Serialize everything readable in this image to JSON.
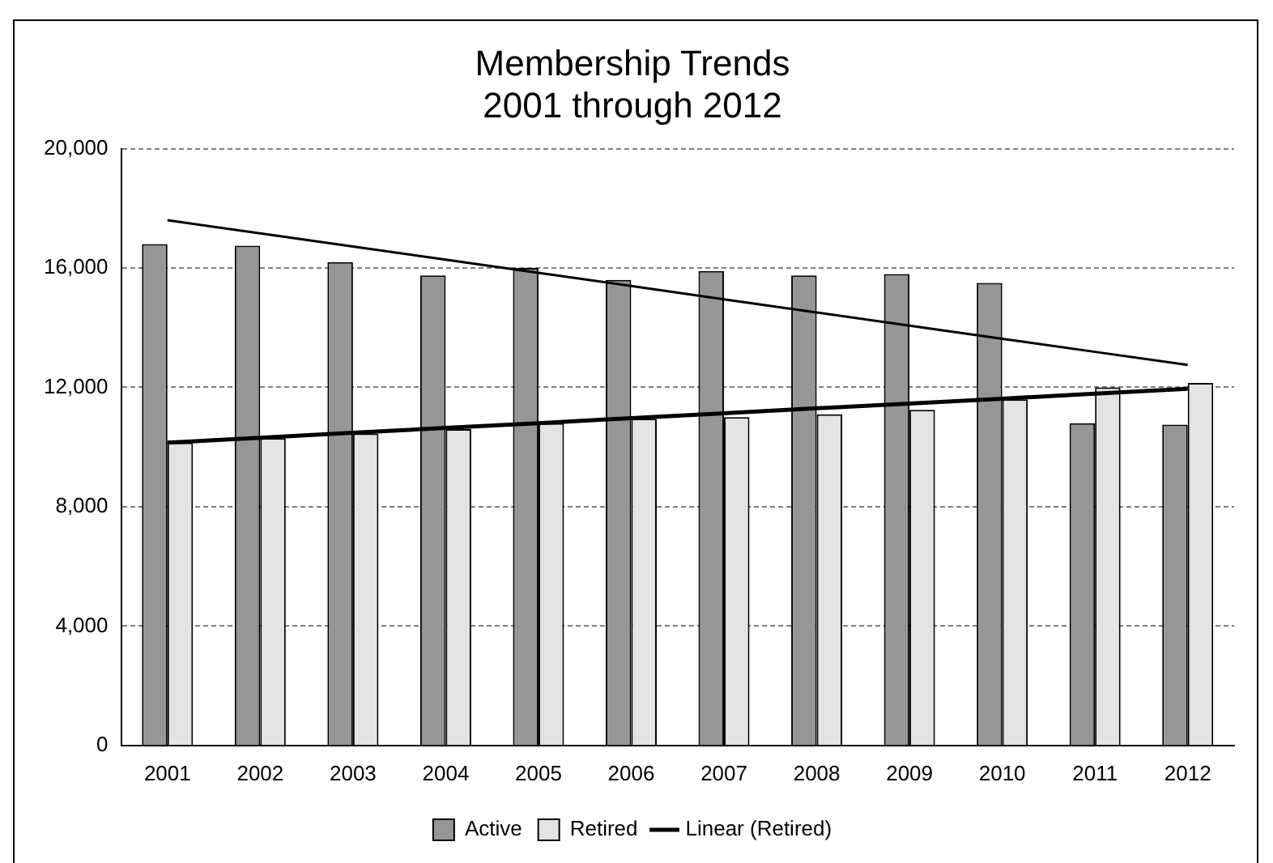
{
  "chart_data": {
    "type": "bar",
    "title": "Membership Trends\n2001 through 2012",
    "categories": [
      "2001",
      "2002",
      "2003",
      "2004",
      "2005",
      "2006",
      "2007",
      "2008",
      "2009",
      "2010",
      "2011",
      "2012"
    ],
    "series": [
      {
        "name": "Active",
        "color": "#969696",
        "values": [
          16800,
          16750,
          16200,
          15750,
          16000,
          15600,
          15900,
          15750,
          15800,
          15500,
          10800,
          10750
        ]
      },
      {
        "name": "Retired",
        "color": "#e3e3e3",
        "values": [
          10150,
          10300,
          10450,
          10600,
          10800,
          10950,
          11000,
          11100,
          11250,
          11600,
          12000,
          12150
        ]
      },
      {
        "type": "line",
        "name": "Linear (Retired)",
        "color": "#000000",
        "values": [
          10150,
          10310,
          10480,
          10640,
          10800,
          10970,
          11130,
          11300,
          11460,
          11620,
          11790,
          11950
        ]
      },
      {
        "type": "line",
        "color": "#000000",
        "values": [
          17600,
          17160,
          16720,
          16280,
          15840,
          15400,
          14950,
          14510,
          14070,
          13630,
          13190,
          12750
        ]
      }
    ],
    "ylim": [
      0,
      20000
    ],
    "yticks": [
      {
        "value": 0,
        "label": "0"
      },
      {
        "value": 4000,
        "label": "4,000"
      },
      {
        "value": 8000,
        "label": "8,000"
      },
      {
        "value": 12000,
        "label": "12,000"
      },
      {
        "value": 16000,
        "label": "16,000"
      },
      {
        "value": 20000,
        "label": "20,000"
      }
    ],
    "grid": "y",
    "legend": "bottom"
  }
}
